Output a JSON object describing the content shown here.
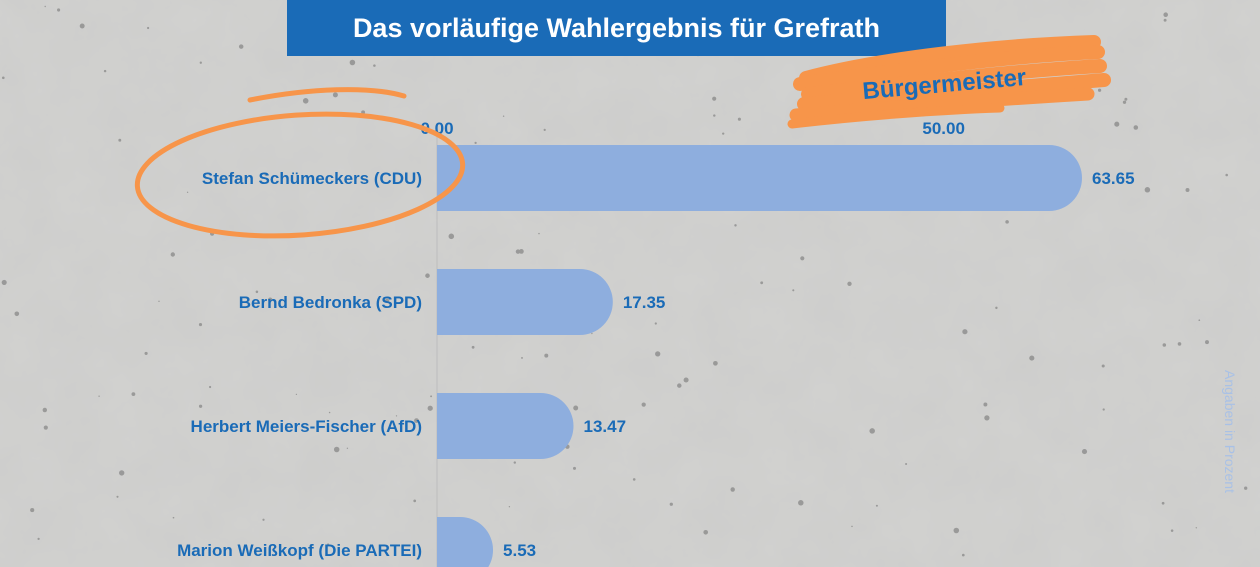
{
  "title": "Das vorläufige Wahlergebnis für Grefrath",
  "subtitle": "Bürgermeister",
  "side_note": "Angaben in Prozent",
  "colors": {
    "bar": "#8eaede",
    "title_bg": "#1a6bb7",
    "label": "#1a6bb7",
    "brush": "#f7954a",
    "subtitle_text": "#1a6bb7",
    "note": "#a9c1e6"
  },
  "chart_data": {
    "type": "bar",
    "orientation": "horizontal",
    "categories": [
      "Stefan Schümeckers (CDU)",
      "Bernd Bedronka (SPD)",
      "Herbert Meiers-Fischer (AfD)",
      "Marion Weißkopf (Die PARTEI)"
    ],
    "values": [
      63.65,
      17.35,
      13.47,
      5.53
    ],
    "value_labels": [
      "63.65",
      "17.35",
      "13.47",
      "5.53"
    ],
    "xticks": [
      0,
      50
    ],
    "xtick_labels": [
      "0.00",
      "50.00"
    ],
    "xlim": [
      0,
      63.65
    ],
    "highlight": "Stefan Schümeckers (CDU)",
    "grid": false
  }
}
